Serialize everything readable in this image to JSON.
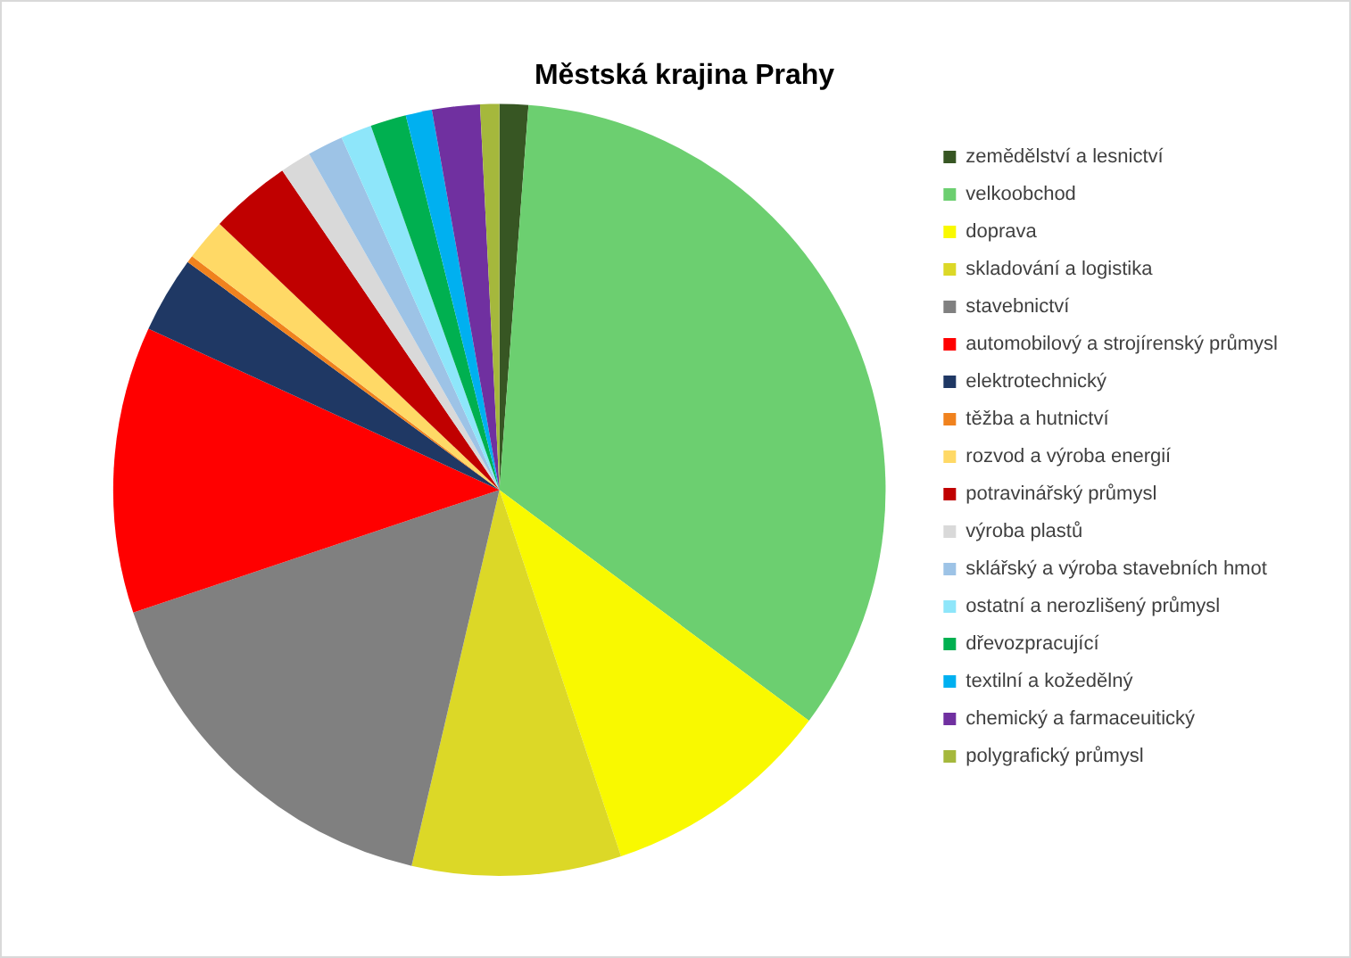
{
  "chart_data": {
    "type": "pie",
    "title": "Městská krajina Prahy",
    "categories": [
      "zemědělství a lesnictví",
      "velkoobchod",
      "doprava",
      "skladování a logistika",
      "stavebnictví",
      "automobilový a strojírenský průmysl",
      "elektrotechnický",
      "těžba a hutnictví",
      "rozvod a výroba energií",
      "potravinářský průmysl",
      "výroba plastů",
      "sklářský a výroba stavebních hmot",
      "ostatní a nerozlišený průmysl",
      "dřevozpracující",
      "textilní a kožedělný",
      "chemický a farmaceuitický",
      "polygrafický průmysl"
    ],
    "values": [
      1.2,
      34,
      9.7,
      8.75,
      16.2,
      12,
      3.2,
      0.3,
      1.75,
      3.4,
      1.3,
      1.5,
      1.3,
      1.5,
      1.1,
      2,
      0.8
    ],
    "colors": [
      "#375623",
      "#6ccf70",
      "#f9f900",
      "#dcd827",
      "#808080",
      "#ff0000",
      "#1f3864",
      "#f0821e",
      "#ffd966",
      "#c00000",
      "#d9d9d9",
      "#9dc3e6",
      "#8ee6fa",
      "#00b050",
      "#00b0f0",
      "#7030a0",
      "#a5b83c"
    ],
    "legend": "right"
  }
}
